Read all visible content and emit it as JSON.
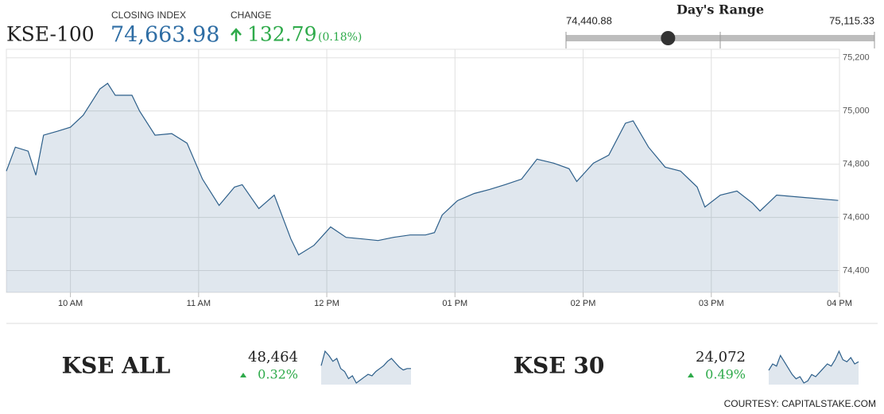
{
  "header": {
    "symbol": "KSE-100",
    "closing_label": "CLOSING INDEX",
    "closing": {
      "value": 74663.98,
      "label": "74,663.98"
    },
    "change_label": "CHANGE",
    "change": "132.79",
    "change_pct": "(0.18%)"
  },
  "day_range": {
    "title": "Day's Range",
    "low": {
      "value": 74440.88,
      "label": "74,440.88"
    },
    "high": {
      "value": 75115.33,
      "label": "75,115.33"
    }
  },
  "chart_data": {
    "type": "line",
    "x": [
      9.5,
      9.57,
      9.67,
      9.73,
      9.79,
      9.9,
      10.0,
      10.1,
      10.23,
      10.29,
      10.35,
      10.48,
      10.54,
      10.66,
      10.79,
      10.91,
      11.03,
      11.16,
      11.28,
      11.34,
      11.47,
      11.59,
      11.72,
      11.78,
      11.9,
      12.03,
      12.15,
      12.28,
      12.4,
      12.52,
      12.65,
      12.77,
      12.84,
      12.9,
      13.02,
      13.15,
      13.27,
      13.39,
      13.52,
      13.64,
      13.77,
      13.89,
      13.95,
      14.08,
      14.2,
      14.33,
      14.39,
      14.51,
      14.64,
      14.76,
      14.89,
      14.95,
      15.07,
      15.2,
      15.32,
      15.38,
      15.51,
      15.99
    ],
    "series": [
      {
        "name": "KSE-100",
        "color": "#2d5f8a",
        "values": [
          74774,
          74864,
          74849,
          74759,
          74909,
          74924,
          74939,
          74984,
          75083,
          75104,
          75059,
          75059,
          74999,
          74909,
          74915,
          74879,
          74744,
          74645,
          74714,
          74723,
          74633,
          74684,
          74519,
          74459,
          74495,
          74564,
          74525,
          74519,
          74513,
          74525,
          74534,
          74534,
          74543,
          74609,
          74663,
          74690,
          74705,
          74723,
          74744,
          74819,
          74804,
          74783,
          74735,
          74804,
          74834,
          74954,
          74963,
          74864,
          74789,
          74774,
          74714,
          74639,
          74684,
          74699,
          74654,
          74624,
          74684,
          74664
        ]
      }
    ],
    "xlim": [
      9.5,
      16.0
    ],
    "xticks": [
      {
        "value": 10,
        "label": "10 AM"
      },
      {
        "value": 11,
        "label": "11 AM"
      },
      {
        "value": 12,
        "label": "12 PM"
      },
      {
        "value": 13,
        "label": "01 PM"
      },
      {
        "value": 14,
        "label": "02 PM"
      },
      {
        "value": 15,
        "label": "03 PM"
      },
      {
        "value": 16,
        "label": "04 PM"
      }
    ],
    "ylim": [
      74318,
      75232
    ],
    "yticks": [
      {
        "value": 74400,
        "label": "74,400"
      },
      {
        "value": 74600,
        "label": "74,600"
      },
      {
        "value": 74800,
        "label": "74,800"
      },
      {
        "value": 75000,
        "label": "75,000"
      },
      {
        "value": 75200,
        "label": "75,200"
      }
    ],
    "grid": true
  },
  "indices": [
    {
      "name": "KSE ALL",
      "value": "48,464",
      "change": "0.32%",
      "spark": [
        48420,
        48520,
        48490,
        48450,
        48470,
        48400,
        48380,
        48330,
        48350,
        48300,
        48320,
        48340,
        48360,
        48350,
        48380,
        48400,
        48420,
        48450,
        48470,
        48440,
        48410,
        48390,
        48400,
        48400
      ]
    },
    {
      "name": "KSE 30",
      "value": "24,072",
      "change": "0.49%",
      "spark": [
        24010,
        24040,
        24030,
        24080,
        24050,
        24020,
        23990,
        23970,
        23980,
        23950,
        23960,
        23990,
        23980,
        24000,
        24020,
        24040,
        24030,
        24060,
        24100,
        24060,
        24050,
        24070,
        24040,
        24050
      ]
    }
  ],
  "courtesy": "COURTESY: CAPITALSTAKE.COM"
}
